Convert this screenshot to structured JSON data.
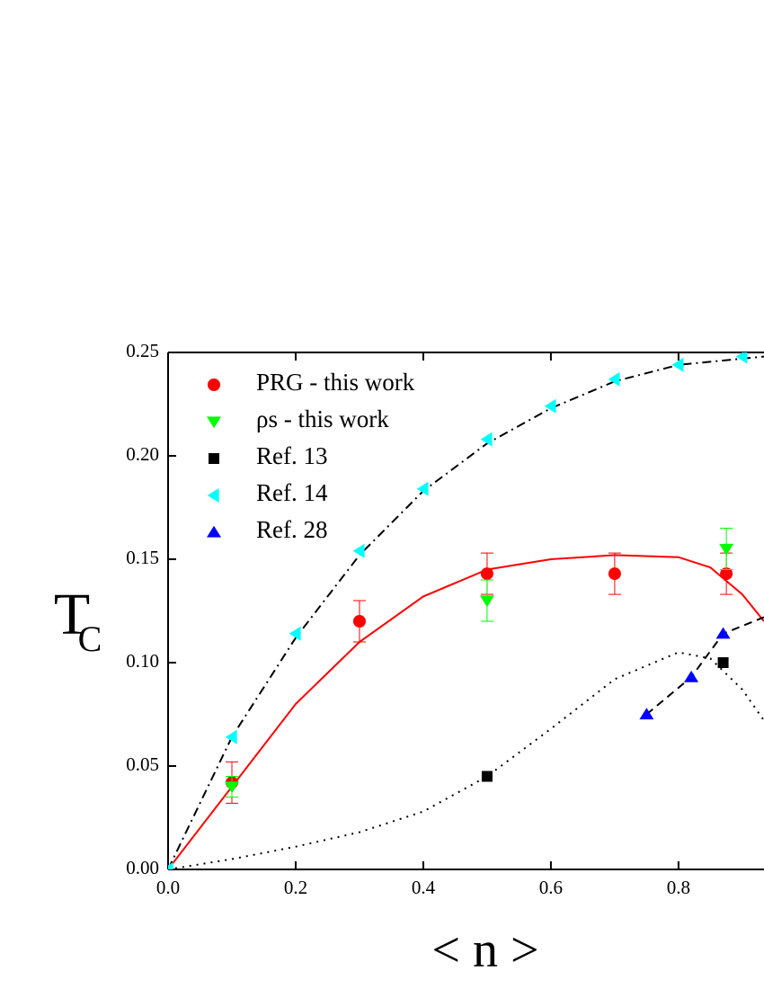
{
  "chart_data": {
    "type": "scatter",
    "x_label": "< n >",
    "y_label": "T",
    "y_label_subscript": "C",
    "xlim": [
      0,
      0.934
    ],
    "ylim": [
      0,
      0.25
    ],
    "xticks": [
      {
        "value": 0,
        "label": "0.0"
      },
      {
        "value": 0.2,
        "label": "0.2"
      },
      {
        "value": 0.4,
        "label": "0.4"
      },
      {
        "value": 0.6,
        "label": "0.6"
      },
      {
        "value": 0.8,
        "label": "0.8"
      }
    ],
    "yticks": [
      {
        "value": 0,
        "label": "0.00"
      },
      {
        "value": 0.05,
        "label": "0.05"
      },
      {
        "value": 0.1,
        "label": "0.10"
      },
      {
        "value": 0.15,
        "label": "0.15"
      },
      {
        "value": 0.2,
        "label": "0.20"
      },
      {
        "value": 0.25,
        "label": "0.25"
      }
    ],
    "legend": "upper left",
    "series": [
      {
        "name": "PRG - this work",
        "color": "#ff0000",
        "marker": "circle",
        "x": [
          0.1,
          0.3,
          0.5,
          0.7,
          0.875
        ],
        "values": [
          0.042,
          0.12,
          0.143,
          0.143,
          0.143
        ],
        "errors": [
          0.01,
          0.01,
          0.01,
          0.01,
          0.01
        ]
      },
      {
        "name": "ρs -  this work",
        "color": "#00ff00",
        "marker": "triangle-down",
        "x": [
          0.1,
          0.5,
          0.875
        ],
        "values": [
          0.04,
          0.13,
          0.155
        ],
        "errors": [
          0.005,
          0.01,
          0.01
        ]
      },
      {
        "name": "Ref. 13",
        "color": "#000000",
        "marker": "square",
        "x": [
          0.5,
          0.87
        ],
        "values": [
          0.045,
          0.1
        ]
      },
      {
        "name": "Ref. 14",
        "color": "#00ffff",
        "marker": "triangle-left",
        "x": [
          0,
          0.1,
          0.2,
          0.3,
          0.4,
          0.5,
          0.6,
          0.7,
          0.8,
          0.9
        ],
        "values": [
          0,
          0.064,
          0.114,
          0.154,
          0.184,
          0.208,
          0.224,
          0.237,
          0.244,
          0.248
        ]
      },
      {
        "name": "Ref. 28",
        "color": "#0000ff",
        "marker": "triangle-up",
        "x": [
          0.75,
          0.82,
          0.87
        ],
        "values": [
          0.075,
          0.093,
          0.114
        ]
      }
    ],
    "curves": [
      {
        "color": "#ff0000",
        "dash": "solid",
        "x": [
          0,
          0.1,
          0.2,
          0.3,
          0.4,
          0.5,
          0.6,
          0.7,
          0.8,
          0.85,
          0.9,
          0.934
        ],
        "values": [
          0,
          0.04,
          0.08,
          0.11,
          0.132,
          0.145,
          0.15,
          0.152,
          0.151,
          0.146,
          0.133,
          0.12
        ]
      },
      {
        "color": "#000000",
        "dash": "dashdot",
        "x": [
          0,
          0.1,
          0.2,
          0.3,
          0.4,
          0.5,
          0.6,
          0.7,
          0.8,
          0.9,
          0.934
        ],
        "values": [
          0,
          0.064,
          0.112,
          0.152,
          0.183,
          0.206,
          0.223,
          0.236,
          0.244,
          0.247,
          0.248
        ]
      },
      {
        "color": "#000000",
        "dash": "dot",
        "x": [
          0,
          0.1,
          0.2,
          0.3,
          0.4,
          0.5,
          0.6,
          0.7,
          0.8,
          0.85,
          0.9,
          0.934
        ],
        "values": [
          0,
          0.005,
          0.011,
          0.018,
          0.028,
          0.045,
          0.068,
          0.092,
          0.105,
          0.102,
          0.087,
          0.072
        ]
      },
      {
        "color": "#000000",
        "dash": "dash",
        "x": [
          0.75,
          0.82,
          0.87,
          0.934
        ],
        "values": [
          0.075,
          0.093,
          0.114,
          0.122
        ]
      }
    ]
  }
}
